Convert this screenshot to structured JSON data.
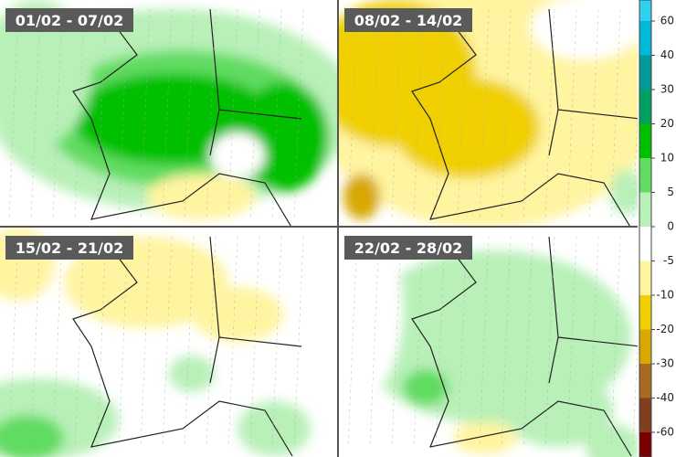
{
  "panels": [
    {
      "label": "01/02 - 07/02"
    },
    {
      "label": "08/02 - 14/02"
    },
    {
      "label": "15/02 - 21/02"
    },
    {
      "label": "22/02 - 28/02"
    }
  ],
  "colorbar": {
    "labels": [
      "60",
      "40",
      "30",
      "20",
      "10",
      "5",
      "0",
      "-5",
      "-10",
      "-20",
      "-30",
      "-40",
      "-60"
    ],
    "colors": [
      "#30d0f0",
      "#00b8d8",
      "#009a9a",
      "#00a060",
      "#00c000",
      "#60dc60",
      "#b8f0b8",
      "#ffffff",
      "#fff4a0",
      "#f0d000",
      "#d8a800",
      "#a86a20",
      "#804020",
      "#7a0000"
    ]
  }
}
